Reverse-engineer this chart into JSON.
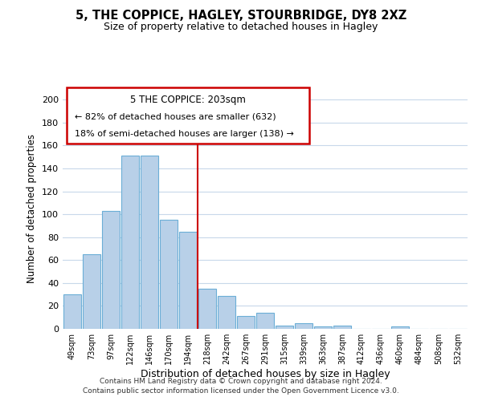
{
  "title": "5, THE COPPICE, HAGLEY, STOURBRIDGE, DY8 2XZ",
  "subtitle": "Size of property relative to detached houses in Hagley",
  "xlabel": "Distribution of detached houses by size in Hagley",
  "ylabel": "Number of detached properties",
  "bar_labels": [
    "49sqm",
    "73sqm",
    "97sqm",
    "122sqm",
    "146sqm",
    "170sqm",
    "194sqm",
    "218sqm",
    "242sqm",
    "267sqm",
    "291sqm",
    "315sqm",
    "339sqm",
    "363sqm",
    "387sqm",
    "412sqm",
    "436sqm",
    "460sqm",
    "484sqm",
    "508sqm",
    "532sqm"
  ],
  "bar_values": [
    30,
    65,
    103,
    151,
    151,
    95,
    85,
    35,
    29,
    11,
    14,
    3,
    5,
    2,
    3,
    0,
    0,
    2,
    0,
    0,
    0
  ],
  "bar_color": "#b8d0e8",
  "bar_edge_color": "#6baed6",
  "vline_color": "#cc0000",
  "ylim": [
    0,
    210
  ],
  "yticks": [
    0,
    20,
    40,
    60,
    80,
    100,
    120,
    140,
    160,
    180,
    200
  ],
  "annotation_title": "5 THE COPPICE: 203sqm",
  "annotation_line1": "← 82% of detached houses are smaller (632)",
  "annotation_line2": "18% of semi-detached houses are larger (138) →",
  "annotation_box_color": "#ffffff",
  "annotation_box_edge": "#cc0000",
  "footer_line1": "Contains HM Land Registry data © Crown copyright and database right 2024.",
  "footer_line2": "Contains public sector information licensed under the Open Government Licence v3.0.",
  "background_color": "#ffffff",
  "grid_color": "#c8d8ea"
}
